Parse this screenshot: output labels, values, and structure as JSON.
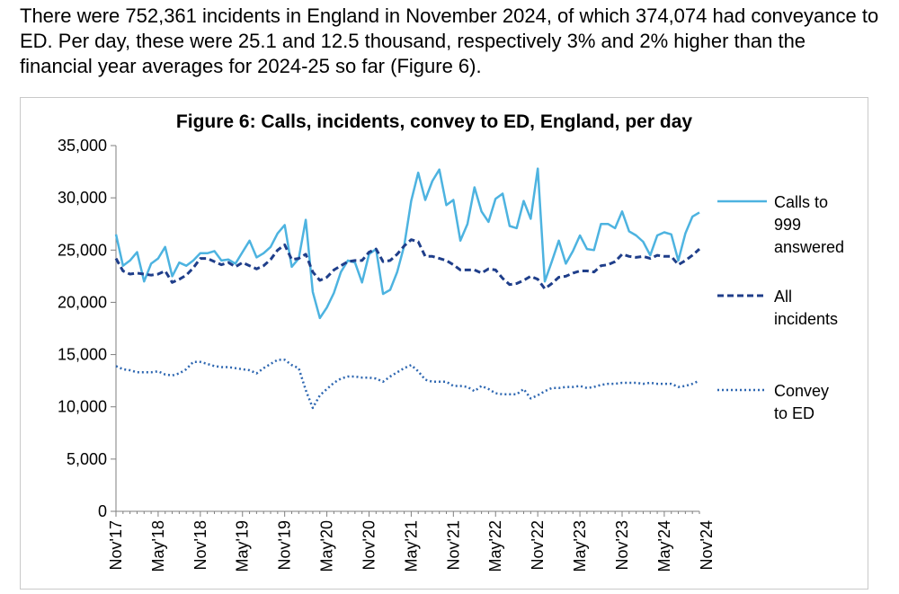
{
  "intro_text": "There were 752,361 incidents in England in November 2024, of which 374,074 had conveyance to ED. Per day, these were 25.1 and 12.5 thousand, respectively 3% and 2% higher than the financial year averages for 2024-25 so far (Figure 6).",
  "colors": {
    "calls": "#4db3e0",
    "incidents": "#1f3e8a",
    "convey": "#2e67b1",
    "axis": "#7f7f7f"
  },
  "chart_data": {
    "type": "line",
    "title": "Figure 6: Calls, incidents, convey to ED, England, per day",
    "ylim": [
      0,
      35000
    ],
    "yticks": [
      0,
      5000,
      10000,
      15000,
      20000,
      25000,
      30000,
      35000
    ],
    "ytick_labels": [
      "0",
      "5,000",
      "10,000",
      "15,000",
      "20,000",
      "25,000",
      "30,000",
      "35,000"
    ],
    "xtick_labels": [
      "Nov'17",
      "May'18",
      "Nov'18",
      "May'19",
      "Nov'19",
      "May'20",
      "Nov'20",
      "May'21",
      "Nov'21",
      "May'22",
      "Nov'22",
      "May'23",
      "Nov'23",
      "May'24",
      "Nov'24"
    ],
    "x_start": "Nov'17",
    "x_end": "Nov'24",
    "legend_position": "right",
    "series": [
      {
        "name": "Calls to 999 answered",
        "legend_lines": [
          "Calls to",
          "999",
          "answered"
        ],
        "style": "solid",
        "values": [
          26500,
          23500,
          24000,
          24800,
          22000,
          23700,
          24200,
          25300,
          22500,
          23800,
          23500,
          24000,
          24700,
          24700,
          24900,
          24000,
          24100,
          23700,
          24800,
          25900,
          24300,
          24700,
          25300,
          26600,
          27400,
          23400,
          24200,
          27900,
          21000,
          18500,
          19500,
          20900,
          22900,
          24000,
          23800,
          21900,
          24600,
          25100,
          20800,
          21200,
          22900,
          25400,
          29700,
          32400,
          29800,
          31600,
          32700,
          29300,
          29800,
          25900,
          27500,
          31000,
          28700,
          27700,
          29900,
          30400,
          27300,
          27100,
          29700,
          28000,
          32800,
          22000,
          23900,
          25900,
          23700,
          24900,
          26400,
          25100,
          25000,
          27500,
          27500,
          27100,
          28700,
          26800,
          26400,
          25800,
          24500,
          26400,
          26700,
          26500,
          24000,
          26600,
          28200,
          28600
        ]
      },
      {
        "name": "All incidents",
        "legend_lines": [
          "All",
          "incidents"
        ],
        "style": "dashed",
        "values": [
          24200,
          23000,
          22700,
          22800,
          22700,
          22600,
          22700,
          23000,
          21900,
          22200,
          22600,
          23300,
          24200,
          24200,
          23900,
          23600,
          23800,
          23400,
          23800,
          23500,
          23200,
          23500,
          24100,
          25000,
          25500,
          24100,
          24200,
          24600,
          22900,
          22100,
          22400,
          23100,
          23500,
          23900,
          24000,
          24000,
          24800,
          25100,
          23900,
          24000,
          24600,
          25400,
          26000,
          25800,
          24400,
          24400,
          24200,
          24000,
          23600,
          23100,
          23100,
          23100,
          22800,
          23200,
          23100,
          22300,
          21700,
          21800,
          22100,
          22500,
          22200,
          21300,
          21800,
          22400,
          22500,
          22800,
          23000,
          23000,
          22900,
          23500,
          23600,
          23900,
          24600,
          24400,
          24300,
          24400,
          24200,
          24500,
          24400,
          24400,
          23600,
          24000,
          24500,
          25100
        ]
      },
      {
        "name": "Convey to ED",
        "legend_lines": [
          "Convey",
          "to ED"
        ],
        "style": "dotted",
        "values": [
          13900,
          13600,
          13500,
          13300,
          13300,
          13300,
          13400,
          13100,
          13000,
          13200,
          13600,
          14300,
          14300,
          14100,
          13900,
          13800,
          13800,
          13700,
          13600,
          13500,
          13200,
          13700,
          14100,
          14500,
          14500,
          14000,
          13700,
          11600,
          9900,
          11100,
          11700,
          12300,
          12700,
          12900,
          12900,
          12800,
          12800,
          12700,
          12400,
          12900,
          13300,
          13700,
          14000,
          13400,
          12600,
          12400,
          12400,
          12400,
          12000,
          12000,
          11900,
          11500,
          12000,
          11700,
          11300,
          11200,
          11200,
          11200,
          11700,
          10800,
          11100,
          11500,
          11800,
          11800,
          11900,
          11900,
          12000,
          11800,
          11900,
          12100,
          12200,
          12200,
          12300,
          12300,
          12300,
          12200,
          12300,
          12200,
          12200,
          12200,
          11900,
          12000,
          12200,
          12500
        ]
      }
    ]
  }
}
